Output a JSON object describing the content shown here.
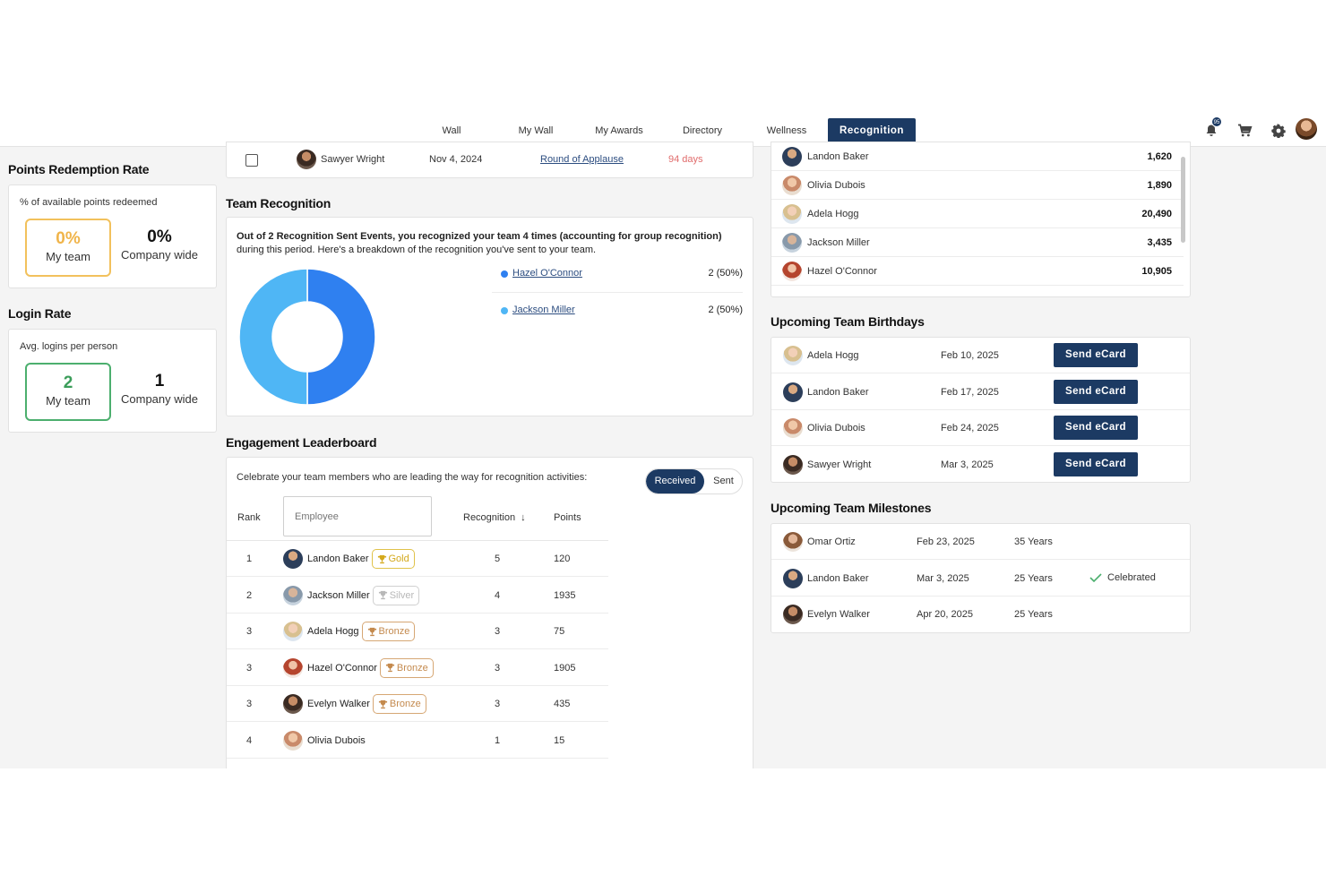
{
  "nav": {
    "tabs": [
      "Wall",
      "My Wall",
      "My Awards",
      "Directory",
      "Wellness",
      "Recognition"
    ],
    "active": "Recognition",
    "notification_count": "95"
  },
  "points_redemption": {
    "title": "Points Redemption Rate",
    "subtitle": "% of available points redeemed",
    "my_team_value": "0%",
    "my_team_label": "My team",
    "company_value": "0%",
    "company_label": "Company wide"
  },
  "login_rate": {
    "title": "Login Rate",
    "subtitle": "Avg. logins per person",
    "my_team_value": "2",
    "my_team_label": "My team",
    "company_value": "1",
    "company_label": "Company wide"
  },
  "top_row": {
    "name": "Sawyer Wright",
    "date": "Nov 4, 2024",
    "award": "Round of Applause",
    "days": "94 days"
  },
  "team_recognition": {
    "title": "Team Recognition",
    "summary_bold": "Out of 2 Recognition Sent Events, you recognized your team 4 times (accounting for group recognition)",
    "summary_rest": "during this period. Here's a breakdown of the recognition you've sent to your team.",
    "breakdown": [
      {
        "name": "Hazel O'Connor",
        "value": "2 (50%)",
        "color": "#2f80f0",
        "share": 0.5
      },
      {
        "name": "Jackson Miller",
        "value": "2 (50%)",
        "color": "#4fb6f5",
        "share": 0.5
      }
    ]
  },
  "leaderboard": {
    "title": "Engagement Leaderboard",
    "description": "Celebrate your team members who are leading the way for recognition activities:",
    "toggle": {
      "received": "Received",
      "sent": "Sent"
    },
    "columns": {
      "rank": "Rank",
      "employee_placeholder": "Employee",
      "recognition": "Recognition",
      "points": "Points"
    },
    "rows": [
      {
        "rank": "1",
        "name": "Landon Baker",
        "badge": "Gold",
        "recognition": "5",
        "points": "120"
      },
      {
        "rank": "2",
        "name": "Jackson Miller",
        "badge": "Silver",
        "recognition": "4",
        "points": "1935"
      },
      {
        "rank": "3",
        "name": "Adela Hogg",
        "badge": "Bronze",
        "recognition": "3",
        "points": "75"
      },
      {
        "rank": "3",
        "name": "Hazel O'Connor",
        "badge": "Bronze",
        "recognition": "3",
        "points": "1905"
      },
      {
        "rank": "3",
        "name": "Evelyn Walker",
        "badge": "Bronze",
        "recognition": "3",
        "points": "435"
      },
      {
        "rank": "4",
        "name": "Olivia Dubois",
        "badge": "",
        "recognition": "1",
        "points": "15"
      }
    ]
  },
  "points_list": [
    {
      "name": "Landon Baker",
      "points": "1,620"
    },
    {
      "name": "Olivia Dubois",
      "points": "1,890"
    },
    {
      "name": "Adela Hogg",
      "points": "20,490"
    },
    {
      "name": "Jackson Miller",
      "points": "3,435"
    },
    {
      "name": "Hazel O'Connor",
      "points": "10,905"
    }
  ],
  "birthdays": {
    "title": "Upcoming Team Birthdays",
    "button_label": "Send eCard",
    "rows": [
      {
        "name": "Adela Hogg",
        "date": "Feb 10, 2025"
      },
      {
        "name": "Landon Baker",
        "date": "Feb 17, 2025"
      },
      {
        "name": "Olivia Dubois",
        "date": "Feb 24, 2025"
      },
      {
        "name": "Sawyer Wright",
        "date": "Mar 3, 2025"
      }
    ]
  },
  "milestones": {
    "title": "Upcoming Team Milestones",
    "rows": [
      {
        "name": "Omar Ortiz",
        "date": "Feb 23, 2025",
        "years": "35 Years",
        "status": ""
      },
      {
        "name": "Landon Baker",
        "date": "Mar 3, 2025",
        "years": "25 Years",
        "status": "Celebrated"
      },
      {
        "name": "Evelyn Walker",
        "date": "Apr 20, 2025",
        "years": "25 Years",
        "status": ""
      }
    ]
  }
}
